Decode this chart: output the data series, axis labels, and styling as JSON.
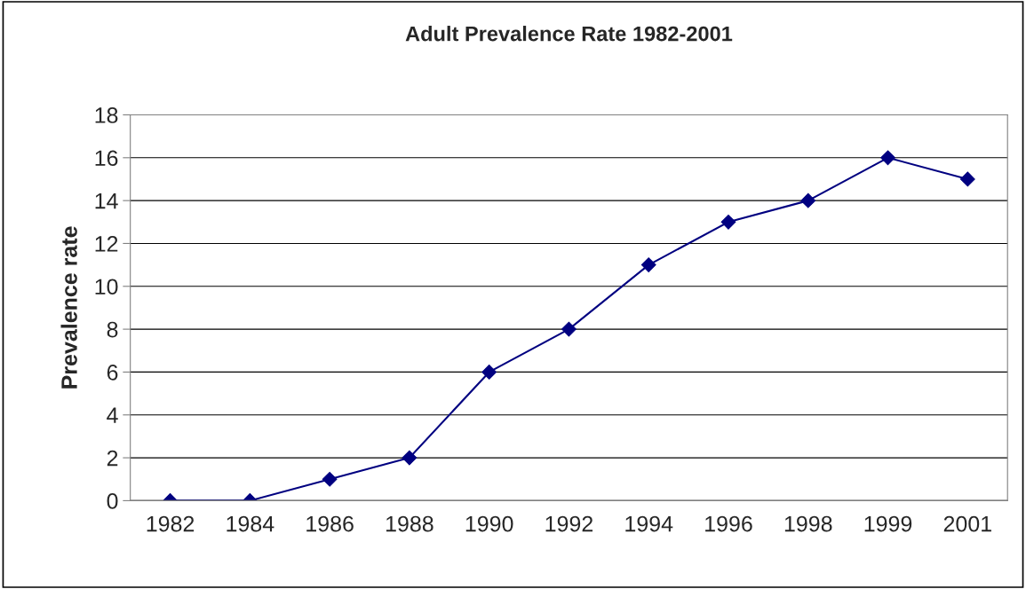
{
  "chart_data": {
    "type": "line",
    "title": "Adult Prevalence Rate 1982-2001",
    "ylabel": "Prevalence rate",
    "categories": [
      "1982",
      "1984",
      "1986",
      "1988",
      "1990",
      "1992",
      "1994",
      "1996",
      "1998",
      "1999",
      "2001"
    ],
    "series": [
      {
        "color": "#000080",
        "values": [
          0,
          0,
          1,
          2,
          6,
          8,
          11,
          13,
          14,
          16,
          15
        ]
      }
    ],
    "ylim": [
      0,
      18
    ],
    "yticks": [
      0,
      2,
      4,
      6,
      8,
      10,
      12,
      14,
      16,
      18
    ],
    "grid": "y",
    "marker": "diamond",
    "line_style": "solid",
    "legend": false
  }
}
